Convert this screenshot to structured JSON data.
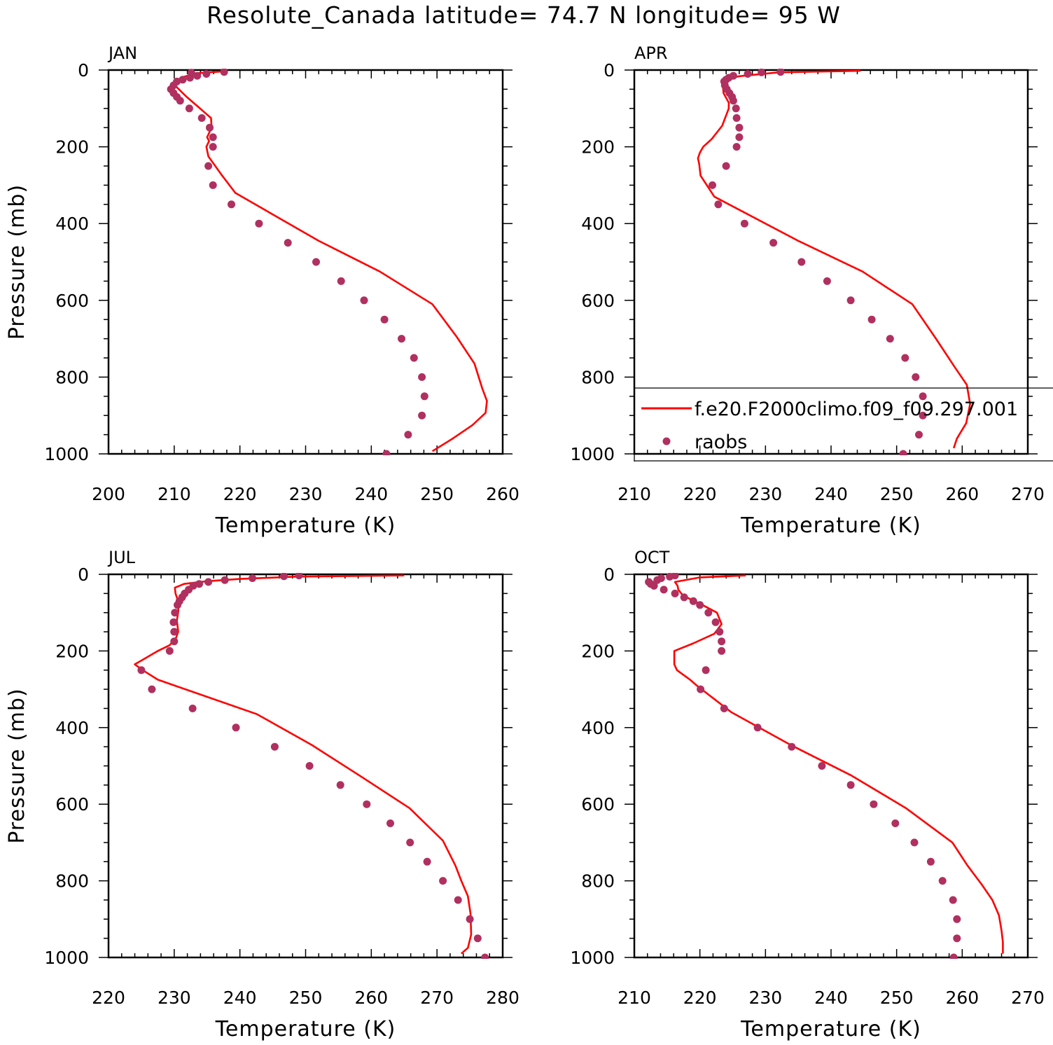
{
  "title": "Resolute_Canada  latitude= 74.7 N longitude= 95 W",
  "colors": {
    "model": "#ff0000",
    "obs": "#b03060",
    "axis": "#000000"
  },
  "legend": {
    "model_label": "f.e20.F2000climo.f09_f09.297.001",
    "obs_label": "raobs",
    "placement": "inside APR panel, lower"
  },
  "chart_data": [
    {
      "type": "scatter",
      "panel": "JAN",
      "xlabel": "Temperature (K)",
      "ylabel": "Pressure (mb)",
      "xlim": [
        200,
        260
      ],
      "ylim": [
        1000,
        0
      ],
      "grid": false,
      "xticks": [
        200,
        210,
        220,
        230,
        240,
        250,
        260
      ],
      "yticks": [
        0,
        200,
        400,
        600,
        800,
        1000
      ],
      "series": [
        {
          "name": "f.e20.F2000climo.f09_f09.297.001",
          "kind": "line",
          "points": [
            [
              249.3,
              993
            ],
            [
              252.4,
              960
            ],
            [
              255.4,
              925
            ],
            [
              257.4,
              893
            ],
            [
              257.6,
              862
            ],
            [
              256.9,
              830
            ],
            [
              255.7,
              765
            ],
            [
              253.0,
              695
            ],
            [
              249.3,
              610
            ],
            [
              241.3,
              525
            ],
            [
              232.0,
              445
            ],
            [
              219.3,
              320
            ],
            [
              217.3,
              275
            ],
            [
              215.2,
              225
            ],
            [
              214.9,
              200
            ],
            [
              215.3,
              185
            ],
            [
              215.0,
              175
            ],
            [
              215.7,
              150
            ],
            [
              215.6,
              125
            ],
            [
              214.6,
              110
            ],
            [
              213.6,
              95
            ],
            [
              211.9,
              70
            ],
            [
              210.1,
              40
            ],
            [
              210.4,
              28
            ],
            [
              211.0,
              20
            ],
            [
              212.4,
              13
            ],
            [
              213.5,
              8
            ],
            [
              218.0,
              3
            ]
          ]
        },
        {
          "name": "raobs",
          "kind": "scatter",
          "points": [
            [
              242.3,
              1000
            ],
            [
              245.6,
              950
            ],
            [
              247.7,
              900
            ],
            [
              248.1,
              850
            ],
            [
              247.7,
              800
            ],
            [
              246.5,
              750
            ],
            [
              244.6,
              700
            ],
            [
              242.0,
              650
            ],
            [
              238.9,
              600
            ],
            [
              235.4,
              550
            ],
            [
              231.6,
              500
            ],
            [
              227.3,
              450
            ],
            [
              222.9,
              400
            ],
            [
              218.7,
              350
            ],
            [
              215.9,
              300
            ],
            [
              215.2,
              250
            ],
            [
              215.9,
              200
            ],
            [
              215.9,
              175
            ],
            [
              215.4,
              150
            ],
            [
              214.2,
              125
            ],
            [
              212.3,
              100
            ],
            [
              210.9,
              80
            ],
            [
              210.4,
              70
            ],
            [
              209.9,
              60
            ],
            [
              209.5,
              50
            ],
            [
              209.9,
              40
            ],
            [
              210.4,
              30
            ],
            [
              211.3,
              25
            ],
            [
              212.4,
              20
            ],
            [
              213.5,
              15
            ],
            [
              214.9,
              10
            ],
            [
              212.6,
              7
            ],
            [
              217.6,
              5
            ]
          ]
        }
      ]
    },
    {
      "type": "scatter",
      "panel": "APR",
      "xlabel": "Temperature (K)",
      "ylabel": "",
      "xlim": [
        210,
        270
      ],
      "ylim": [
        1000,
        0
      ],
      "grid": false,
      "xticks": [
        210,
        220,
        230,
        240,
        250,
        260,
        270
      ],
      "yticks": [
        0,
        200,
        400,
        600,
        800,
        1000
      ],
      "series": [
        {
          "name": "f.e20.F2000climo.f09_f09.297.001",
          "kind": "line",
          "points": [
            [
              258.7,
              985
            ],
            [
              259.2,
              960
            ],
            [
              260.6,
              920
            ],
            [
              261.2,
              870
            ],
            [
              260.7,
              820
            ],
            [
              258.9,
              775
            ],
            [
              256.0,
              700
            ],
            [
              252.4,
              610
            ],
            [
              244.8,
              525
            ],
            [
              235.0,
              445
            ],
            [
              222.2,
              330
            ],
            [
              220.1,
              275
            ],
            [
              219.9,
              245
            ],
            [
              219.7,
              230
            ],
            [
              220.0,
              215
            ],
            [
              220.5,
              200
            ],
            [
              221.8,
              180
            ],
            [
              223.4,
              145
            ],
            [
              224.4,
              100
            ],
            [
              224.4,
              85
            ],
            [
              223.6,
              60
            ],
            [
              223.5,
              40
            ],
            [
              223.8,
              28
            ],
            [
              225.0,
              20
            ],
            [
              226.0,
              16
            ],
            [
              232.0,
              6
            ],
            [
              244.5,
              2
            ]
          ]
        },
        {
          "name": "raobs",
          "kind": "scatter",
          "points": [
            [
              251.0,
              1000
            ],
            [
              253.4,
              950
            ],
            [
              254.0,
              900
            ],
            [
              254.0,
              850
            ],
            [
              252.9,
              800
            ],
            [
              251.3,
              750
            ],
            [
              249.0,
              700
            ],
            [
              246.2,
              650
            ],
            [
              243.0,
              600
            ],
            [
              239.4,
              550
            ],
            [
              235.5,
              500
            ],
            [
              231.2,
              450
            ],
            [
              226.8,
              400
            ],
            [
              222.8,
              350
            ],
            [
              221.9,
              300
            ],
            [
              224.0,
              250
            ],
            [
              225.6,
              200
            ],
            [
              226.0,
              175
            ],
            [
              226.0,
              150
            ],
            [
              225.6,
              125
            ],
            [
              225.5,
              100
            ],
            [
              225.1,
              80
            ],
            [
              224.9,
              70
            ],
            [
              224.5,
              60
            ],
            [
              224.1,
              50
            ],
            [
              223.8,
              40
            ],
            [
              223.7,
              30
            ],
            [
              224.0,
              25
            ],
            [
              224.4,
              20
            ],
            [
              225.1,
              15
            ],
            [
              227.3,
              10
            ],
            [
              229.4,
              6
            ],
            [
              232.3,
              5
            ]
          ]
        }
      ]
    },
    {
      "type": "scatter",
      "panel": "JUL",
      "xlabel": "Temperature (K)",
      "ylabel": "Pressure (mb)",
      "xlim": [
        220,
        280
      ],
      "ylim": [
        1000,
        0
      ],
      "grid": false,
      "xticks": [
        220,
        230,
        240,
        250,
        260,
        270,
        280
      ],
      "yticks": [
        0,
        200,
        400,
        600,
        800,
        1000
      ],
      "series": [
        {
          "name": "f.e20.F2000climo.f09_f09.297.001",
          "kind": "line",
          "points": [
            [
              273.7,
              990
            ],
            [
              274.7,
              975
            ],
            [
              275.2,
              940
            ],
            [
              275.1,
              885
            ],
            [
              274.7,
              840
            ],
            [
              273.7,
              800
            ],
            [
              272.8,
              760
            ],
            [
              270.9,
              695
            ],
            [
              265.8,
              610
            ],
            [
              258.2,
              525
            ],
            [
              250.9,
              445
            ],
            [
              242.6,
              365
            ],
            [
              227.5,
              275
            ],
            [
              225.2,
              250
            ],
            [
              224.0,
              235
            ],
            [
              225.0,
              225
            ],
            [
              227.5,
              200
            ],
            [
              229.3,
              185
            ],
            [
              230.3,
              165
            ],
            [
              230.6,
              150
            ],
            [
              230.4,
              120
            ],
            [
              230.6,
              100
            ],
            [
              230.7,
              75
            ],
            [
              230.2,
              50
            ],
            [
              230.1,
              35
            ],
            [
              231.5,
              25
            ],
            [
              235.0,
              18
            ],
            [
              240.0,
              12
            ],
            [
              248.5,
              6
            ],
            [
              265.0,
              3
            ]
          ]
        },
        {
          "name": "raobs",
          "kind": "scatter",
          "points": [
            [
              277.3,
              1000
            ],
            [
              276.2,
              950
            ],
            [
              275.0,
              900
            ],
            [
              273.2,
              850
            ],
            [
              270.9,
              800
            ],
            [
              268.5,
              750
            ],
            [
              265.9,
              700
            ],
            [
              262.9,
              650
            ],
            [
              259.3,
              600
            ],
            [
              255.3,
              550
            ],
            [
              250.6,
              500
            ],
            [
              245.3,
              450
            ],
            [
              239.4,
              400
            ],
            [
              232.8,
              350
            ],
            [
              226.6,
              300
            ],
            [
              225.0,
              250
            ],
            [
              229.3,
              200
            ],
            [
              230.0,
              175
            ],
            [
              230.0,
              150
            ],
            [
              229.9,
              125
            ],
            [
              230.1,
              100
            ],
            [
              230.5,
              80
            ],
            [
              230.8,
              70
            ],
            [
              231.2,
              60
            ],
            [
              231.6,
              50
            ],
            [
              232.2,
              40
            ],
            [
              232.9,
              30
            ],
            [
              233.8,
              25
            ],
            [
              235.2,
              20
            ],
            [
              237.7,
              15
            ],
            [
              241.9,
              10
            ],
            [
              246.7,
              5
            ],
            [
              249.0,
              3
            ]
          ]
        }
      ]
    },
    {
      "type": "scatter",
      "panel": "OCT",
      "xlabel": "Temperature (K)",
      "ylabel": "",
      "xlim": [
        210,
        270
      ],
      "ylim": [
        1000,
        0
      ],
      "grid": false,
      "xticks": [
        210,
        220,
        230,
        240,
        250,
        260,
        270
      ],
      "yticks": [
        0,
        200,
        400,
        600,
        800,
        1000
      ],
      "series": [
        {
          "name": "f.e20.F2000climo.f09_f09.297.001",
          "kind": "line",
          "points": [
            [
              266.2,
              990
            ],
            [
              266.2,
              960
            ],
            [
              266.0,
              930
            ],
            [
              265.6,
              890
            ],
            [
              264.6,
              850
            ],
            [
              263.0,
              810
            ],
            [
              260.8,
              760
            ],
            [
              258.5,
              700
            ],
            [
              251.4,
              610
            ],
            [
              243.1,
              525
            ],
            [
              233.8,
              445
            ],
            [
              224.8,
              360
            ],
            [
              219.5,
              290
            ],
            [
              218.5,
              275
            ],
            [
              216.5,
              250
            ],
            [
              216.1,
              235
            ],
            [
              216.1,
              200
            ],
            [
              219.0,
              180
            ],
            [
              222.2,
              155
            ],
            [
              223.3,
              130
            ],
            [
              222.6,
              100
            ],
            [
              220.4,
              80
            ],
            [
              219.4,
              72
            ],
            [
              217.4,
              55
            ],
            [
              216.7,
              40
            ],
            [
              216.6,
              30
            ],
            [
              216.2,
              20
            ],
            [
              220.0,
              8
            ],
            [
              227.0,
              3
            ]
          ]
        },
        {
          "name": "raobs",
          "kind": "scatter",
          "points": [
            [
              258.7,
              1000
            ],
            [
              259.2,
              950
            ],
            [
              259.2,
              900
            ],
            [
              258.6,
              850
            ],
            [
              257.0,
              800
            ],
            [
              255.2,
              750
            ],
            [
              252.7,
              700
            ],
            [
              249.8,
              650
            ],
            [
              246.5,
              600
            ],
            [
              243.0,
              550
            ],
            [
              238.6,
              500
            ],
            [
              234.0,
              450
            ],
            [
              228.8,
              400
            ],
            [
              223.7,
              350
            ],
            [
              220.1,
              300
            ],
            [
              220.9,
              250
            ],
            [
              223.3,
              200
            ],
            [
              223.3,
              175
            ],
            [
              223.0,
              150
            ],
            [
              222.4,
              125
            ],
            [
              221.3,
              100
            ],
            [
              220.0,
              80
            ],
            [
              219.0,
              70
            ],
            [
              217.6,
              60
            ],
            [
              216.2,
              50
            ],
            [
              214.5,
              40
            ],
            [
              213.0,
              30
            ],
            [
              212.5,
              25
            ],
            [
              212.2,
              20
            ],
            [
              213.5,
              15
            ],
            [
              214.1,
              10
            ],
            [
              215.4,
              6
            ],
            [
              216.2,
              3
            ]
          ]
        }
      ]
    }
  ]
}
